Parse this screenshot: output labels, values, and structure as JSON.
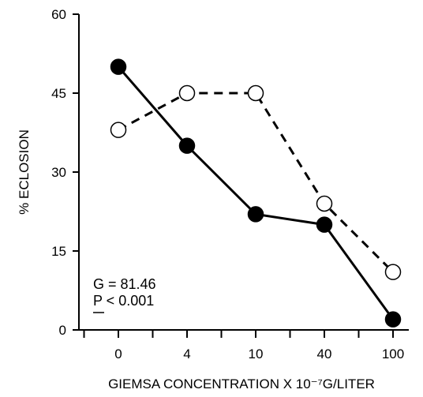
{
  "chart_data": {
    "type": "line",
    "xlabel": "GIEMSA CONCENTRATION X 10⁻⁷G/LITER",
    "ylabel": "% ECLOSION",
    "categories": [
      "0",
      "4",
      "10",
      "40",
      "100"
    ],
    "ylim": [
      0,
      60
    ],
    "yticks": [
      "0",
      "15",
      "30",
      "45",
      "60"
    ],
    "grid": false,
    "legend": "none",
    "series": [
      {
        "style": "solid-line-filled-circles",
        "color": "#000000",
        "values": [
          50,
          35,
          22,
          20,
          2
        ]
      },
      {
        "style": "dashed-line-open-circles",
        "color": "#000000",
        "values": [
          38,
          45,
          45,
          24,
          11
        ]
      }
    ],
    "annotations": [
      "G = 81.46",
      "P < 0.001"
    ]
  }
}
